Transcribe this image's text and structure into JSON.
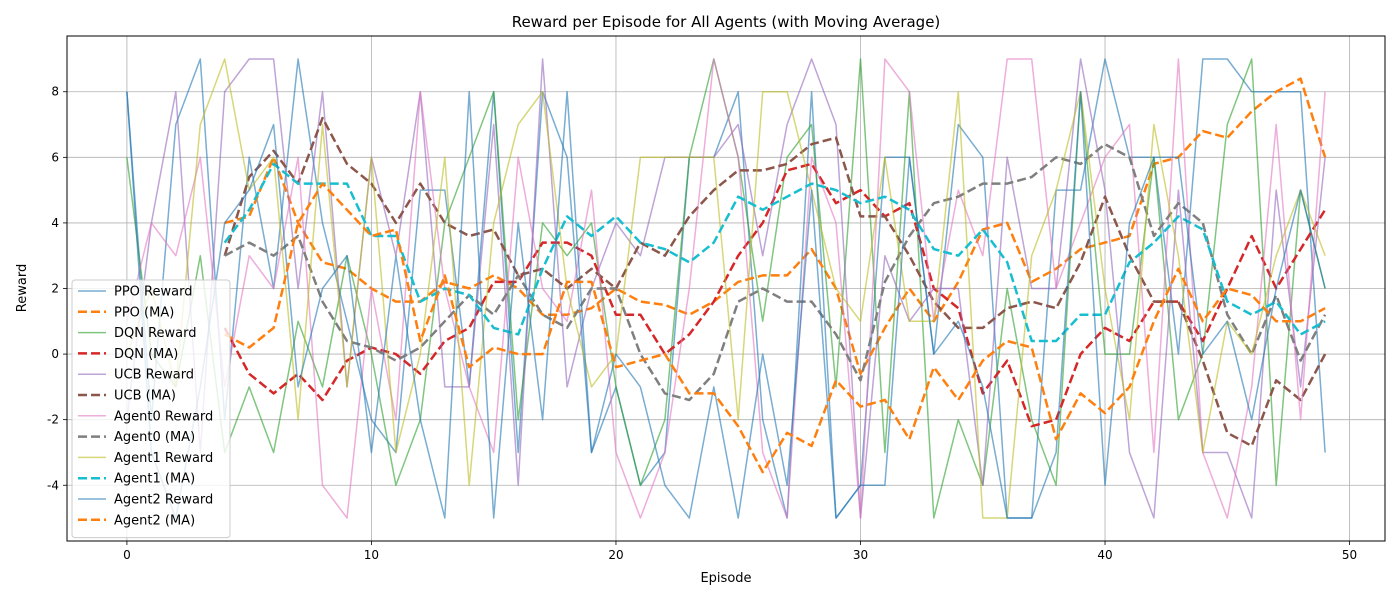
{
  "chart_data": {
    "type": "line",
    "title": "Reward per Episode for All Agents (with Moving Average)",
    "xlabel": "Episode",
    "ylabel": "Reward",
    "xlim": [
      -2.45,
      51.45
    ],
    "ylim": [
      -5.7,
      9.7
    ],
    "xticks": [
      0,
      10,
      20,
      30,
      40,
      50
    ],
    "yticks": [
      -4,
      -2,
      0,
      2,
      4,
      6,
      8
    ],
    "grid": true,
    "legend_position": "lower-left",
    "x": [
      0,
      1,
      2,
      3,
      4,
      5,
      6,
      7,
      8,
      9,
      10,
      11,
      12,
      13,
      14,
      15,
      16,
      17,
      18,
      19,
      20,
      21,
      22,
      23,
      24,
      25,
      26,
      27,
      28,
      29,
      30,
      31,
      32,
      33,
      34,
      35,
      36,
      37,
      38,
      39,
      40,
      41,
      42,
      43,
      44,
      45,
      46,
      47,
      48,
      49
    ],
    "series": [
      {
        "name": "PPO Reward",
        "color": "#1f77b4",
        "style": "solid",
        "alpha": 0.6,
        "values": [
          8,
          -2,
          7,
          9,
          -2,
          6,
          2,
          9,
          4,
          1,
          -2,
          -3,
          5,
          5,
          -1,
          8,
          -3,
          8,
          6,
          -3,
          -1,
          -4,
          -3,
          6,
          6,
          8,
          -2,
          -5,
          8,
          -5,
          -4,
          6,
          6,
          0,
          7,
          6,
          -5,
          -5,
          5,
          5,
          9,
          6,
          6,
          0,
          9,
          9,
          8,
          8,
          8,
          -3
        ]
      },
      {
        "name": "PPO (MA)",
        "color": "#ff7f0e",
        "style": "dashed",
        "alpha": 1,
        "values": [
          null,
          null,
          null,
          null,
          4.0,
          4.2,
          6.0,
          4.0,
          2.8,
          2.6,
          2.0,
          1.6,
          1.6,
          2.2,
          2.0,
          2.4,
          2.0,
          1.2,
          1.2,
          1.4,
          2.0,
          1.6,
          1.5,
          1.2,
          1.6,
          2.2,
          2.4,
          2.4,
          3.2,
          2.0,
          -0.6,
          0.8,
          2.0,
          1.0,
          2.2,
          3.8,
          4.0,
          2.2,
          2.6,
          3.2,
          3.4,
          3.6,
          5.8,
          6.0,
          6.8,
          6.6,
          7.4,
          8.0,
          8.4,
          6.0
        ]
      },
      {
        "name": "DQN Reward",
        "color": "#2ca02c",
        "style": "solid",
        "alpha": 0.6,
        "values": [
          6,
          0,
          -1,
          3,
          -3,
          -1,
          -3,
          1,
          -1,
          3,
          0,
          -4,
          -2,
          4,
          6,
          8,
          -2,
          4,
          3,
          4,
          -1,
          -4,
          -2,
          6,
          9,
          6,
          1,
          6,
          7,
          -1,
          9,
          -3,
          8,
          -5,
          -2,
          -4,
          2,
          -2,
          -4,
          8,
          0,
          0,
          6,
          -2,
          0,
          7,
          9,
          -4,
          5,
          2
        ]
      },
      {
        "name": "DQN (MA)",
        "color": "#d62728",
        "style": "dashed",
        "alpha": 1,
        "values": [
          null,
          null,
          null,
          null,
          0.8,
          -0.6,
          -1.2,
          -0.6,
          -1.4,
          -0.2,
          0.2,
          0,
          -0.6,
          0.4,
          0.8,
          2.2,
          2.2,
          3.4,
          3.4,
          3.0,
          1.2,
          1.2,
          0,
          0.6,
          1.6,
          3.0,
          4.0,
          5.6,
          5.8,
          4.6,
          5.0,
          4.2,
          4.6,
          2.0,
          1.4,
          -1.2,
          -0.2,
          -2.2,
          -2.0,
          0,
          0.8,
          0.4,
          1.6,
          1.6,
          0.4,
          2.0,
          3.6,
          2.0,
          3.2,
          4.4
        ]
      },
      {
        "name": "UCB Reward",
        "color": "#9467bd",
        "style": "solid",
        "alpha": 0.6,
        "values": [
          -2,
          4,
          8,
          -3,
          8,
          9,
          9,
          2,
          8,
          -1,
          6,
          3,
          8,
          -1,
          -1,
          7,
          -4,
          9,
          -1,
          2,
          4,
          3,
          6,
          6,
          6,
          7,
          3,
          7,
          9,
          7,
          -5,
          3,
          1,
          2,
          2,
          -4,
          6,
          2,
          2,
          9,
          5,
          -3,
          -5,
          5,
          -3,
          -3,
          -5,
          5,
          -1,
          6
        ]
      },
      {
        "name": "UCB (MA)",
        "color": "#8c564b",
        "style": "dashed",
        "alpha": 1,
        "values": [
          null,
          null,
          null,
          null,
          3.0,
          5.4,
          6.2,
          5.2,
          7.2,
          5.8,
          5.2,
          4.0,
          5.2,
          4.0,
          3.6,
          3.8,
          2.4,
          2.6,
          2.0,
          2.6,
          2.0,
          3.4,
          3.0,
          4.2,
          5.0,
          5.6,
          5.6,
          5.8,
          6.4,
          6.6,
          4.2,
          4.2,
          3.0,
          1.6,
          0.8,
          0.8,
          1.4,
          1.6,
          1.4,
          2.8,
          4.8,
          3.0,
          1.6,
          1.6,
          -0.2,
          -2.4,
          -2.8,
          -0.8,
          -1.4,
          0
        ]
      },
      {
        "name": "Agent0 Reward",
        "color": "#e377c2",
        "style": "solid",
        "alpha": 0.6,
        "values": [
          1,
          4,
          3,
          6,
          -1,
          3,
          2,
          6,
          -4,
          -5,
          2,
          -2,
          8,
          2,
          -1,
          -3,
          6,
          2,
          1,
          5,
          -3,
          -5,
          -3,
          2,
          9,
          6,
          -3,
          -5,
          6,
          4,
          -5,
          9,
          8,
          1,
          5,
          3,
          9,
          9,
          2,
          4,
          6,
          7,
          -3,
          9,
          -3,
          -5,
          -1,
          7,
          -2,
          8
        ]
      },
      {
        "name": "Agent0 (MA)",
        "color": "#7f7f7f",
        "style": "dashed",
        "alpha": 1,
        "values": [
          null,
          null,
          null,
          null,
          3.0,
          3.4,
          3.0,
          3.6,
          1.6,
          0.4,
          0.2,
          -0.2,
          0.2,
          1.0,
          1.8,
          1.2,
          2.4,
          1.2,
          0.8,
          2.0,
          2.0,
          0,
          -1.2,
          -1.4,
          -0.6,
          1.6,
          2.0,
          1.6,
          1.6,
          0.6,
          -0.8,
          2.2,
          3.6,
          4.6,
          4.8,
          5.2,
          5.2,
          5.4,
          6.0,
          5.8,
          6.4,
          6.0,
          3.6,
          4.6,
          4.0,
          1.2,
          0,
          1.8,
          -0.2,
          1.2
        ]
      },
      {
        "name": "Agent1 Reward",
        "color": "#bcbd22",
        "style": "solid",
        "alpha": 0.6,
        "values": [
          0,
          2,
          -1,
          7,
          9,
          5,
          6,
          -2,
          7,
          -1,
          6,
          -3,
          0,
          6,
          -4,
          4,
          7,
          8,
          2,
          -1,
          0,
          6,
          6,
          6,
          6,
          -2,
          8,
          8,
          5,
          2,
          1,
          6,
          1,
          1,
          8,
          -5,
          -5,
          3,
          5,
          8,
          2,
          -2,
          7,
          3,
          -3,
          1,
          0,
          3,
          5,
          3
        ]
      },
      {
        "name": "Agent1 (MA)",
        "color": "#17becf",
        "style": "dashed",
        "alpha": 1,
        "values": [
          null,
          null,
          null,
          null,
          3.4,
          4.4,
          5.8,
          5.2,
          5.2,
          5.2,
          3.6,
          3.6,
          1.6,
          2.0,
          1.8,
          0.8,
          0.6,
          2.6,
          4.2,
          3.6,
          4.2,
          3.4,
          3.2,
          2.8,
          3.4,
          4.8,
          4.4,
          4.8,
          5.2,
          5.0,
          4.6,
          4.8,
          4.4,
          3.2,
          3.0,
          3.8,
          2.8,
          0.4,
          0.4,
          1.2,
          1.2,
          2.8,
          3.4,
          4.2,
          3.8,
          1.6,
          1.2,
          1.6,
          0.6,
          1.0
        ]
      },
      {
        "name": "Agent2 Reward",
        "color": "#1f77b4",
        "style": "solid",
        "alpha": 0.6,
        "values": [
          8,
          -3,
          -5,
          -1,
          4,
          5,
          7,
          -1,
          2,
          3,
          -3,
          3,
          -2,
          -5,
          8,
          -5,
          4,
          -2,
          8,
          -3,
          0,
          -1,
          -4,
          -5,
          -1,
          -5,
          0,
          -4,
          5,
          -5,
          -4,
          -4,
          6,
          0,
          1,
          -1,
          -5,
          -5,
          -3,
          8,
          -4,
          4,
          6,
          6,
          0,
          1,
          -2,
          2,
          5,
          2
        ]
      },
      {
        "name": "Agent2 (MA)",
        "color": "#ff7f0e",
        "style": "dashed",
        "alpha": 1,
        "values": [
          null,
          null,
          null,
          null,
          0.6,
          0.2,
          0.8,
          4.0,
          5.2,
          4.4,
          3.6,
          3.8,
          0.4,
          2.4,
          -0.4,
          0.2,
          0,
          0,
          2.2,
          2.2,
          -0.4,
          -0.2,
          0,
          -1.2,
          -1.2,
          -2.2,
          -3.6,
          -2.4,
          -2.8,
          -0.8,
          -1.6,
          -1.4,
          -2.6,
          -0.4,
          -1.4,
          -0.2,
          0.4,
          0.2,
          -2.6,
          -1.2,
          -1.8,
          -1.0,
          1.0,
          2.6,
          1.0,
          2.0,
          1.8,
          1.0,
          1.0,
          1.4
        ]
      }
    ]
  }
}
